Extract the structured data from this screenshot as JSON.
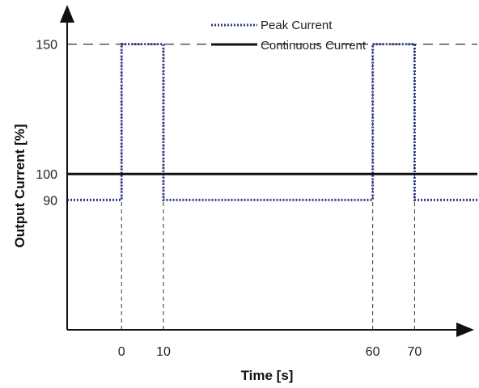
{
  "chart_data": {
    "type": "line",
    "xlabel": "Time [s]",
    "ylabel": "Output Current [%]",
    "x_ticks": [
      0,
      10,
      60,
      70
    ],
    "y_ticks": [
      90,
      100,
      150
    ],
    "xlim": [
      -13,
      85
    ],
    "ylim": [
      40,
      167
    ],
    "grid": false,
    "legend_position": "top",
    "series": [
      {
        "name": "Peak Current",
        "style": "dotted",
        "color": "#2c3a8f",
        "points": [
          [
            -13,
            90
          ],
          [
            0,
            90
          ],
          [
            0,
            150
          ],
          [
            10,
            150
          ],
          [
            10,
            90
          ],
          [
            60,
            90
          ],
          [
            60,
            150
          ],
          [
            70,
            150
          ],
          [
            70,
            90
          ],
          [
            85,
            90
          ]
        ]
      },
      {
        "name": "Continuous Current",
        "style": "solid",
        "color": "#111111",
        "points": [
          [
            -13,
            100
          ],
          [
            85,
            100
          ]
        ]
      }
    ],
    "reference_lines": [
      {
        "axis": "y",
        "value": 150,
        "style": "dashed"
      },
      {
        "axis": "x",
        "value": 0,
        "style": "dashed"
      },
      {
        "axis": "x",
        "value": 10,
        "style": "dashed"
      },
      {
        "axis": "x",
        "value": 60,
        "style": "dashed"
      },
      {
        "axis": "x",
        "value": 70,
        "style": "dashed"
      }
    ]
  }
}
